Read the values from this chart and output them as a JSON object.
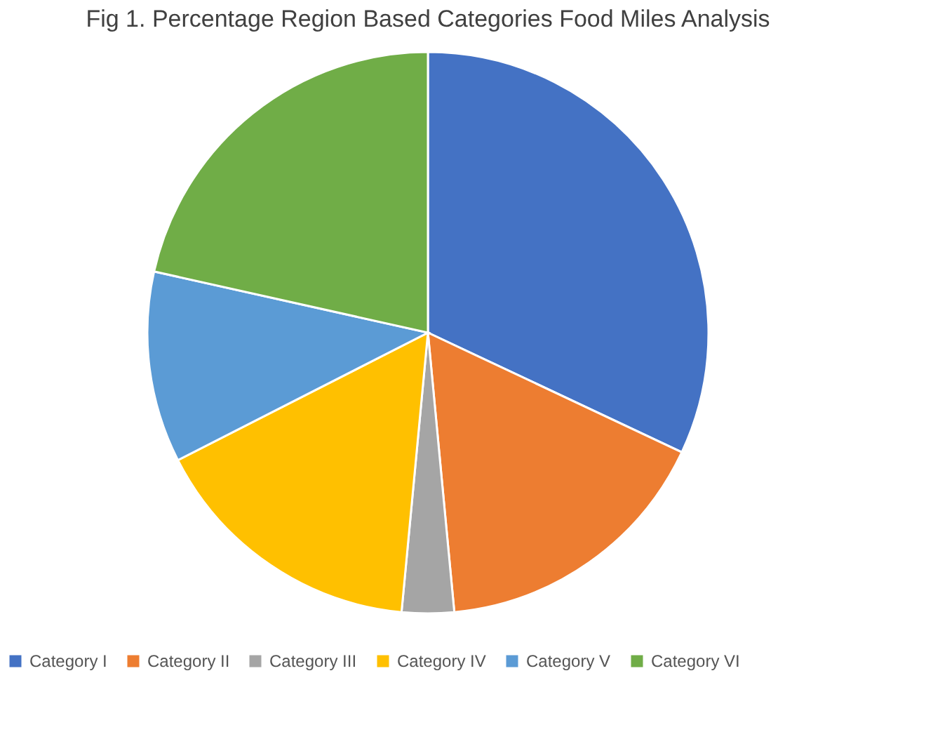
{
  "chart_data": {
    "type": "pie",
    "title": "Fig 1. Percentage  Region Based Categories Food Miles Analysis",
    "categories": [
      "Category I",
      "Category II",
      "Category III",
      "Category IV",
      "Category V",
      "Category VI"
    ],
    "values": [
      32,
      16.5,
      3,
      16,
      11,
      21.5
    ],
    "colors": [
      "#4472c4",
      "#ed7d31",
      "#a5a5a5",
      "#ffc000",
      "#5b9bd5",
      "#70ad47"
    ],
    "legend": "bottom"
  }
}
